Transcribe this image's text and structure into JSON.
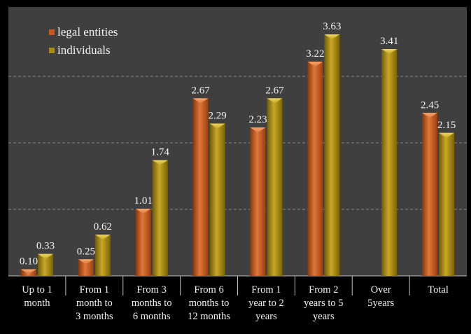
{
  "chart_data": {
    "type": "bar",
    "title": "",
    "xlabel": "",
    "ylabel": "",
    "ylim": [
      0,
      4
    ],
    "grid": true,
    "legend_position": "top-left",
    "categories": [
      [
        "Up to 1",
        "month"
      ],
      [
        "From 1",
        "month to",
        "3 months"
      ],
      [
        "From 3",
        "months to",
        "6 months"
      ],
      [
        "From 6",
        "months to",
        "12 months"
      ],
      [
        "From 1",
        "year to 2",
        "years"
      ],
      [
        "From 2",
        "years to 5",
        "years"
      ],
      [
        "Over",
        "5years"
      ],
      [
        "Total"
      ]
    ],
    "series": [
      {
        "name": "legal entities",
        "color": "#c85a1e",
        "values": [
          0.1,
          0.25,
          1.01,
          2.67,
          2.23,
          3.22,
          null,
          2.45
        ],
        "labels": [
          "0.10",
          "0.25",
          "1.01",
          "2.67",
          "2.23",
          "3.22",
          "",
          "2.45"
        ]
      },
      {
        "name": "individuals",
        "color": "#a88a12",
        "values": [
          0.33,
          0.62,
          1.74,
          2.29,
          2.67,
          3.63,
          3.41,
          2.15
        ],
        "labels": [
          "0.33",
          "0.62",
          "1.74",
          "2.29",
          "2.67",
          "3.63",
          "3.41",
          "2.15"
        ]
      }
    ]
  }
}
